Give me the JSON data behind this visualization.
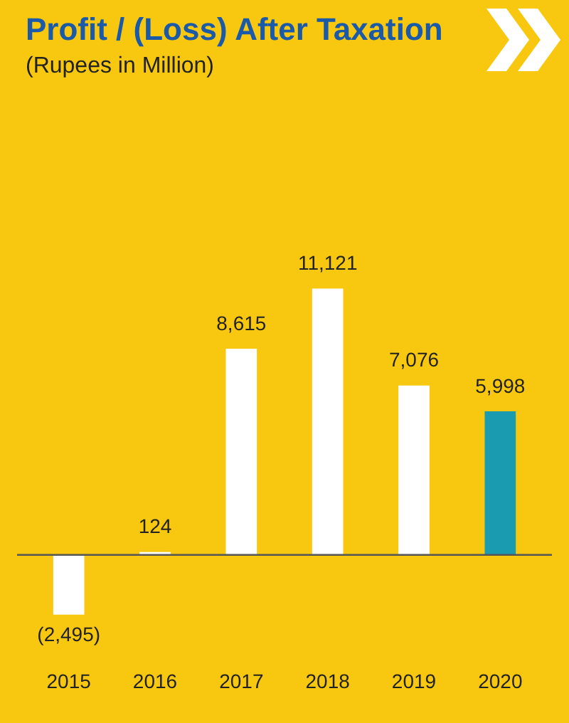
{
  "chart_data": {
    "type": "bar",
    "title": "Profit / (Loss) After Taxation",
    "subtitle": "(Rupees in Million)",
    "categories": [
      "2015",
      "2016",
      "2017",
      "2018",
      "2019",
      "2020"
    ],
    "values": [
      -2495,
      124,
      8615,
      11121,
      7076,
      5998
    ],
    "colors": [
      "#ffffff",
      "#ffffff",
      "#ffffff",
      "#ffffff",
      "#ffffff",
      "#1a9bb0"
    ],
    "value_labels": [
      "(2,495)",
      "124",
      "8,615",
      "11,121",
      "7,076",
      "5,998"
    ],
    "grid": false,
    "legend": false
  }
}
